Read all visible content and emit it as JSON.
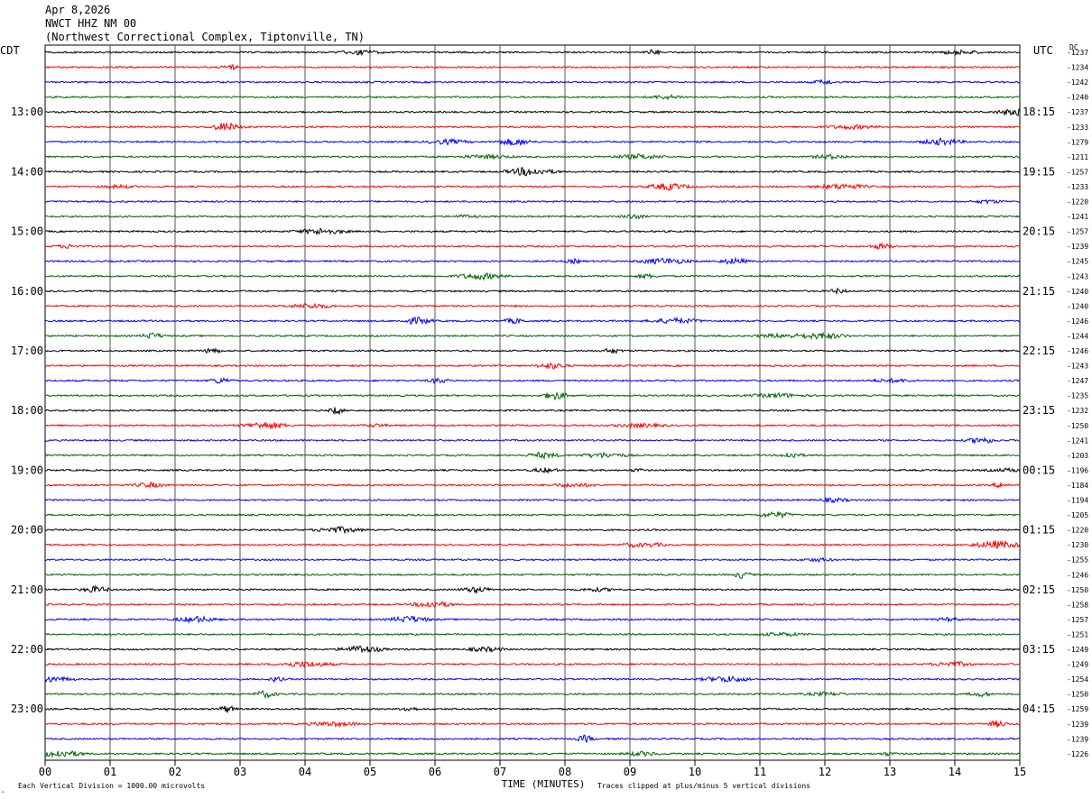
{
  "header": {
    "date": "Apr 8,2026",
    "station": "NWCT HHZ NM 00",
    "location": "(Northwest Correctional Complex, Tiptonville, TN)"
  },
  "left_zone": "CDT",
  "right_zone": "UTC",
  "dc_header": "DC",
  "footer": {
    "division_note": "Each Vertical Division = 1000.00 microvolts",
    "clip_note": "Traces clipped at plus/minus 5 vertical divisions",
    "corner_mark": "‸"
  },
  "chart_data": {
    "type": "line",
    "xlabel": "TIME (MINUTES)",
    "x_ticks": [
      "00",
      "01",
      "02",
      "03",
      "04",
      "05",
      "06",
      "07",
      "08",
      "09",
      "10",
      "11",
      "12",
      "13",
      "14",
      "15"
    ],
    "xlim": [
      0,
      15
    ],
    "trace_count": 48,
    "trace_colors": [
      "#000000",
      "#ff0000",
      "#0000ff",
      "#006400"
    ],
    "left_hour_labels": [
      "13:00",
      "14:00",
      "15:00",
      "16:00",
      "17:00",
      "18:00",
      "19:00",
      "20:00",
      "21:00",
      "22:00",
      "23:00"
    ],
    "right_hour_labels": [
      "18:15",
      "19:15",
      "20:15",
      "21:15",
      "22:15",
      "23:15",
      "00:15",
      "01:15",
      "02:15",
      "03:15",
      "04:15"
    ],
    "dc_offsets": [
      "-1237",
      "-1234",
      "-1242",
      "-1240",
      "-1237",
      "-1233",
      "-1279",
      "-1211",
      "-1257",
      "-1233",
      "-1220",
      "-1241",
      "-1257",
      "-1239",
      "-1245",
      "-1243",
      "-1240",
      "-1240",
      "-1246",
      "-1244",
      "-1246",
      "-1243",
      "-1247",
      "-1235",
      "-1232",
      "-1250",
      "-1241",
      "-1203",
      "-1196",
      "-1184",
      "-1194",
      "-1205",
      "-1220",
      "-1230",
      "-1255",
      "-1246",
      "-1250",
      "-1258",
      "-1257",
      "-1251",
      "-1249",
      "-1249",
      "-1254",
      "-1250",
      "-1259",
      "-1239",
      "-1239",
      "-1226"
    ]
  }
}
